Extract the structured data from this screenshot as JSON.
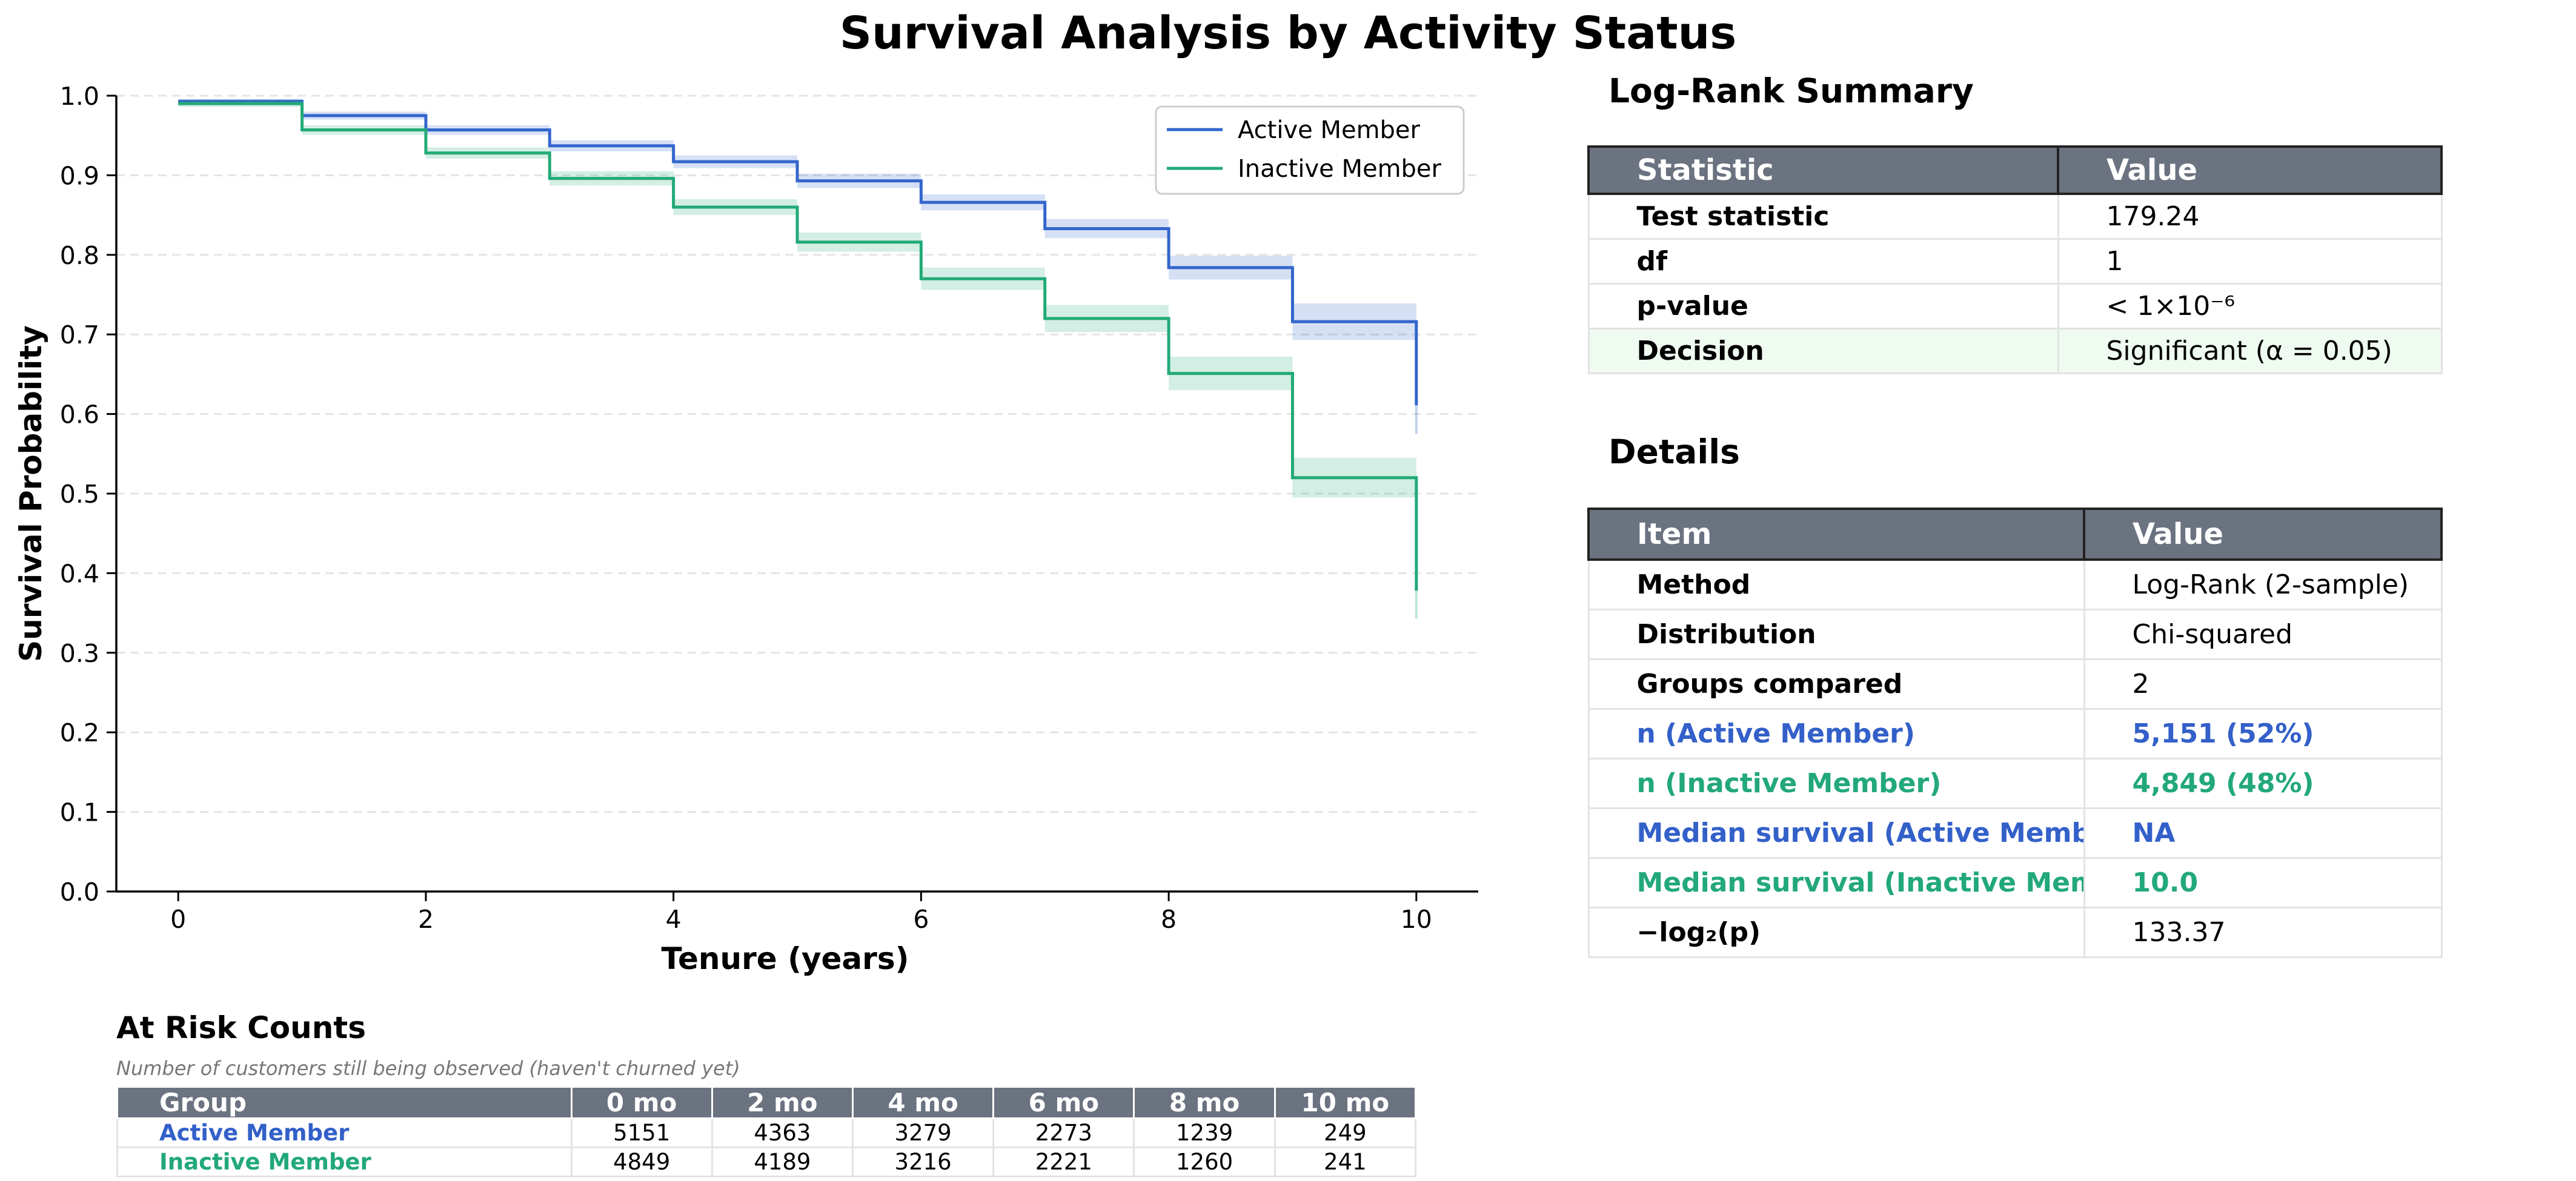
{
  "title": "Survival Analysis by Activity Status",
  "chart_data": {
    "type": "line",
    "step": "post",
    "xlabel": "Tenure (years)",
    "ylabel": "Survival Probability",
    "xlim": [
      -0.5,
      10.5
    ],
    "ylim": [
      0,
      1.0
    ],
    "xticks": [
      0,
      2,
      4,
      6,
      8,
      10
    ],
    "yticks": [
      0.0,
      0.1,
      0.2,
      0.3,
      0.4,
      0.5,
      0.6,
      0.7,
      0.8,
      0.9,
      1.0
    ],
    "grid": "horizontal dashed",
    "legend": "top-right",
    "series": [
      {
        "name": "Active Member",
        "color": "#3366cc",
        "x": [
          0,
          1,
          2,
          3,
          4,
          5,
          6,
          7,
          8,
          9,
          10
        ],
        "y": [
          0.993,
          0.975,
          0.957,
          0.937,
          0.917,
          0.893,
          0.866,
          0.833,
          0.784,
          0.716,
          0.611
        ],
        "ci_low": [
          0.99,
          0.97,
          0.951,
          0.93,
          0.909,
          0.884,
          0.856,
          0.821,
          0.769,
          0.693,
          0.575
        ],
        "ci_high": [
          0.996,
          0.98,
          0.963,
          0.944,
          0.925,
          0.902,
          0.876,
          0.845,
          0.799,
          0.739,
          0.647
        ]
      },
      {
        "name": "Inactive Member",
        "color": "#22aa77",
        "x": [
          0,
          1,
          2,
          3,
          4,
          5,
          6,
          7,
          8,
          9,
          10
        ],
        "y": [
          0.99,
          0.957,
          0.928,
          0.896,
          0.86,
          0.816,
          0.77,
          0.72,
          0.651,
          0.52,
          0.378
        ],
        "ci_low": [
          0.986,
          0.951,
          0.921,
          0.887,
          0.85,
          0.804,
          0.756,
          0.703,
          0.63,
          0.495,
          0.343
        ],
        "ci_high": [
          0.994,
          0.963,
          0.935,
          0.905,
          0.87,
          0.828,
          0.784,
          0.737,
          0.672,
          0.545,
          0.413
        ]
      }
    ]
  },
  "logrank": {
    "title": "Log-Rank Summary",
    "headers": [
      "Statistic",
      "Value"
    ],
    "rows": [
      [
        "Test statistic",
        "179.24"
      ],
      [
        "df",
        "1"
      ],
      [
        "p-value",
        "< 1×10⁻⁶"
      ],
      [
        "Decision",
        "Significant (α = 0.05)"
      ]
    ]
  },
  "details": {
    "title": "Details",
    "headers": [
      "Item",
      "Value"
    ],
    "rows": [
      [
        "Method",
        "Log-Rank (2-sample)"
      ],
      [
        "Distribution",
        "Chi-squared"
      ],
      [
        "Groups compared",
        "2"
      ],
      [
        "n (Active Member)",
        "5,151 (52%)"
      ],
      [
        "n (Inactive Member)",
        "4,849 (48%)"
      ],
      [
        "Median survival (Active Membe",
        "NA"
      ],
      [
        "Median survival (Inactive Mem",
        "10.0"
      ],
      [
        "−log₂(p)",
        "133.37"
      ]
    ]
  },
  "at_risk": {
    "title": "At Risk Counts",
    "note": "Number of customers still being observed (haven't churned yet)",
    "headers": [
      "Group",
      "0 mo",
      "2 mo",
      "4 mo",
      "6 mo",
      "8 mo",
      "10 mo"
    ],
    "rows": [
      [
        "Active Member",
        "5151",
        "4363",
        "3279",
        "2273",
        "1239",
        "249"
      ],
      [
        "Inactive Member",
        "4849",
        "4189",
        "3216",
        "2221",
        "1260",
        "241"
      ]
    ]
  },
  "colors": {
    "active": "#3366cc",
    "inactive": "#22aa77",
    "header_bg": "#6b7280"
  }
}
